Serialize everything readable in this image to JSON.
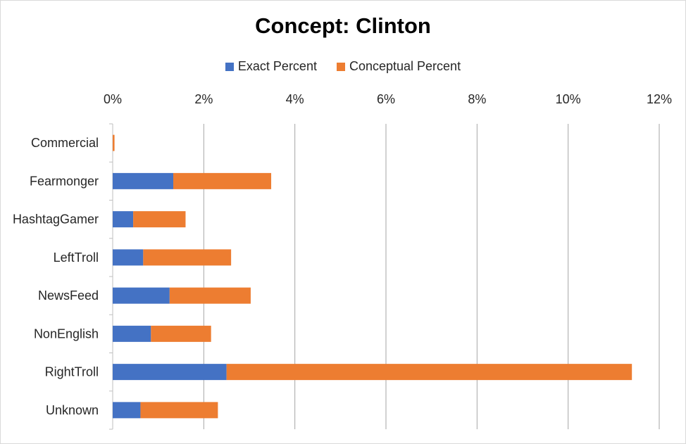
{
  "chart_data": {
    "type": "bar",
    "orientation": "horizontal",
    "stacked": true,
    "title": "Concept: Clinton",
    "categories": [
      "Commercial",
      "Fearmonger",
      "HashtagGamer",
      "LeftTroll",
      "NewsFeed",
      "NonEnglish",
      "RightTroll",
      "Unknown"
    ],
    "series": [
      {
        "name": "Exact Percent",
        "color": "#4472c4",
        "values": [
          0.0,
          1.33,
          0.45,
          0.67,
          1.25,
          0.84,
          2.5,
          0.61
        ]
      },
      {
        "name": "Conceptual Percent",
        "color": "#ed7d31",
        "values": [
          0.04,
          2.15,
          1.15,
          1.93,
          1.78,
          1.32,
          8.9,
          1.7
        ]
      }
    ],
    "xlim": [
      0,
      12
    ],
    "xticks": [
      "0%",
      "2%",
      "4%",
      "6%",
      "8%",
      "10%",
      "12%"
    ],
    "xaxis_position": "top",
    "grid": "vertical",
    "legend_position": "top"
  }
}
